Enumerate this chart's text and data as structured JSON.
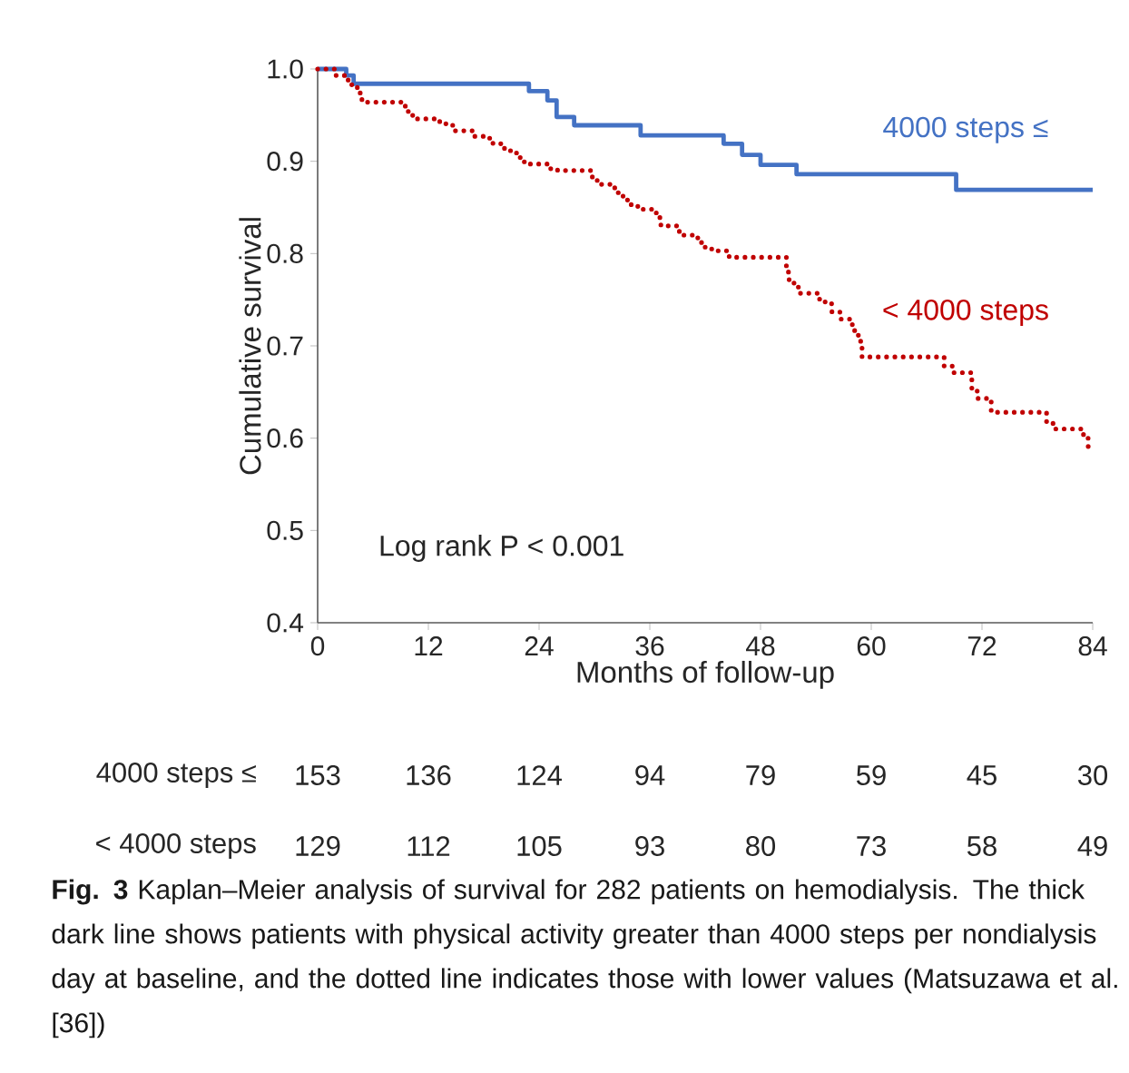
{
  "chart_data": {
    "type": "step",
    "xlabel": "Months of follow-up",
    "ylabel": "Cumulative survival",
    "xlim": [
      0,
      84
    ],
    "xticks": [
      0,
      12,
      24,
      36,
      48,
      60,
      72,
      84
    ],
    "ylim": [
      0.4,
      1.0
    ],
    "yticks": [
      {
        "value": 0.4,
        "label": "0.4"
      },
      {
        "value": 0.5,
        "label": "0.5"
      },
      {
        "value": 0.6,
        "label": "0.6"
      },
      {
        "value": 0.7,
        "label": "0.7"
      },
      {
        "value": 0.8,
        "label": "0.8"
      },
      {
        "value": 0.9,
        "label": "0.9"
      },
      {
        "value": 1.0,
        "label": "1.0"
      }
    ],
    "marker": "none",
    "series": [
      {
        "name": "4000 steps ≤",
        "color": "#4472c4",
        "line_style": "solid",
        "x": [
          0,
          3.1,
          3.9,
          22.9,
          24.9,
          25.9,
          27.8,
          35.0,
          44.0,
          46.0,
          48.0,
          51.9,
          69.2,
          84
        ],
        "values": [
          1.0,
          0.993,
          0.984,
          0.976,
          0.966,
          0.948,
          0.939,
          0.928,
          0.919,
          0.907,
          0.896,
          0.886,
          0.869,
          0.869
        ]
      },
      {
        "name": "< 4000 steps",
        "color": "#c00000",
        "line_style": "dotted",
        "x": [
          0,
          2.0,
          2.9,
          3.7,
          4.3,
          4.8,
          9.5,
          10.3,
          12.9,
          13.9,
          14.7,
          16.9,
          18.3,
          19.0,
          20.0,
          20.9,
          21.7,
          22.4,
          24.9,
          26.0,
          29.7,
          30.3,
          32.2,
          33.1,
          33.9,
          34.7,
          36.7,
          37.2,
          39.2,
          41.2,
          42.0,
          42.9,
          44.6,
          50.8,
          51.1,
          52.1,
          54.4,
          55.0,
          55.7,
          56.6,
          57.7,
          58.2,
          58.6,
          59.0,
          67.9,
          68.8,
          70.9,
          71.5,
          73.0,
          79.0,
          79.7,
          83.0,
          83.5,
          83.7
        ],
        "values": [
          1.0,
          0.993,
          0.988,
          0.981,
          0.974,
          0.964,
          0.954,
          0.946,
          0.943,
          0.939,
          0.933,
          0.927,
          0.925,
          0.919,
          0.914,
          0.909,
          0.904,
          0.897,
          0.892,
          0.89,
          0.883,
          0.875,
          0.866,
          0.858,
          0.853,
          0.848,
          0.839,
          0.83,
          0.82,
          0.812,
          0.805,
          0.803,
          0.796,
          0.78,
          0.768,
          0.757,
          0.75,
          0.747,
          0.737,
          0.729,
          0.723,
          0.712,
          0.705,
          0.688,
          0.678,
          0.671,
          0.651,
          0.643,
          0.628,
          0.616,
          0.61,
          0.6,
          0.591,
          0.591
        ]
      }
    ],
    "annotations": [
      "Log rank P < 0.001",
      "4000 steps ≤",
      "153",
      "136",
      "124",
      "94",
      "79",
      "59",
      "45",
      "30",
      "< 4000 steps",
      "129",
      "112",
      "105",
      "93",
      "80",
      "73",
      "58",
      "49",
      "**Fig. 3** Kaplan–Meier analysis of survival for 282 patients on hemodialysis. The thick dark line shows patients with physical activity greater than 4000 steps per nondialysis day at baseline, and the dotted line indicates those with lower values (Matsuzawa et al. [36])"
    ]
  }
}
